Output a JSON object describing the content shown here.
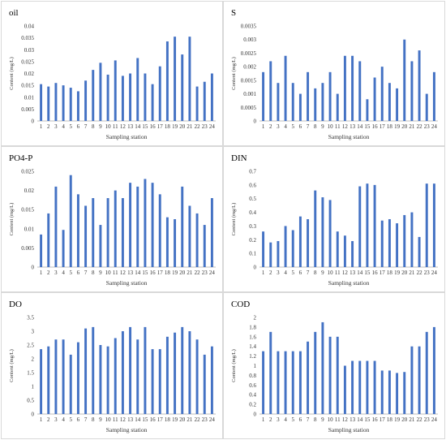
{
  "chart_data": [
    {
      "type": "bar",
      "title": "oil",
      "xlabel": "Sampling station",
      "ylabel": "Content (mg/L)",
      "ylim": [
        0,
        0.04
      ],
      "yticks": [
        "0",
        "0.005",
        "0.01",
        "0.015",
        "0.02",
        "0.025",
        "0.03",
        "0.035",
        "0.04"
      ],
      "categories": [
        "1",
        "2",
        "3",
        "4",
        "5",
        "6",
        "7",
        "8",
        "9",
        "10",
        "11",
        "12",
        "13",
        "14",
        "15",
        "16",
        "17",
        "18",
        "19",
        "20",
        "21",
        "22",
        "23",
        "24"
      ],
      "values": [
        0.0155,
        0.0145,
        0.016,
        0.015,
        0.014,
        0.0125,
        0.017,
        0.0215,
        0.0245,
        0.0195,
        0.0255,
        0.019,
        0.02,
        0.0265,
        0.02,
        0.0155,
        0.023,
        0.0335,
        0.0355,
        0.028,
        0.0355,
        0.0145,
        0.0165,
        0.02
      ],
      "color": "#4472C4"
    },
    {
      "type": "bar",
      "title": "S",
      "xlabel": "Sampling station",
      "ylabel": "Content (mg/L)",
      "ylim": [
        0,
        0.0035
      ],
      "yticks": [
        "0",
        "0.0005",
        "0.001",
        "0.0015",
        "0.002",
        "0.0025",
        "0.003",
        "0.0035"
      ],
      "categories": [
        "1",
        "2",
        "3",
        "4",
        "5",
        "6",
        "7",
        "8",
        "9",
        "10",
        "11",
        "12",
        "13",
        "14",
        "15",
        "16",
        "17",
        "18",
        "19",
        "20",
        "21",
        "22",
        "23",
        "24"
      ],
      "values": [
        0.0018,
        0.0022,
        0.0014,
        0.0024,
        0.0014,
        0.001,
        0.0018,
        0.0012,
        0.0014,
        0.0018,
        0.001,
        0.0024,
        0.0024,
        0.0022,
        0.0008,
        0.0016,
        0.002,
        0.0014,
        0.0012,
        0.003,
        0.0022,
        0.0026,
        0.001,
        0.0018
      ],
      "color": "#4472C4"
    },
    {
      "type": "bar",
      "title": "PO4-P",
      "xlabel": "Sampling station",
      "ylabel": "Content (mg/L)",
      "ylim": [
        0,
        0.025
      ],
      "yticks": [
        "0",
        "0.005",
        "0.01",
        "0.015",
        "0.02",
        "0.025"
      ],
      "categories": [
        "1",
        "2",
        "3",
        "4",
        "5",
        "6",
        "7",
        "8",
        "9",
        "10",
        "11",
        "12",
        "13",
        "14",
        "15",
        "16",
        "17",
        "18",
        "19",
        "20",
        "21",
        "22",
        "23",
        "24"
      ],
      "values": [
        0.0085,
        0.014,
        0.021,
        0.0097,
        0.024,
        0.019,
        0.016,
        0.018,
        0.011,
        0.018,
        0.02,
        0.018,
        0.022,
        0.021,
        0.023,
        0.022,
        0.019,
        0.013,
        0.0125,
        0.021,
        0.016,
        0.014,
        0.011,
        0.018
      ],
      "color": "#4472C4"
    },
    {
      "type": "bar",
      "title": "DIN",
      "xlabel": "Sampling station",
      "ylabel": "Content (mg/L)",
      "ylim": [
        0,
        0.7
      ],
      "yticks": [
        "0",
        "0.1",
        "0.2",
        "0.3",
        "0.4",
        "0.5",
        "0.6",
        "0.7"
      ],
      "categories": [
        "1",
        "2",
        "3",
        "4",
        "5",
        "6",
        "7",
        "8",
        "9",
        "10",
        "11",
        "12",
        "13",
        "14",
        "15",
        "16",
        "17",
        "18",
        "19",
        "20",
        "21",
        "22",
        "23",
        "24"
      ],
      "values": [
        0.26,
        0.18,
        0.19,
        0.3,
        0.27,
        0.37,
        0.35,
        0.56,
        0.51,
        0.49,
        0.26,
        0.23,
        0.19,
        0.59,
        0.61,
        0.6,
        0.34,
        0.35,
        0.32,
        0.38,
        0.4,
        0.22,
        0.61,
        0.61
      ],
      "color": "#4472C4"
    },
    {
      "type": "bar",
      "title": "DO",
      "xlabel": "Sampling station",
      "ylabel": "Content (mg/L)",
      "ylim": [
        0,
        3.5
      ],
      "yticks": [
        "0",
        "0.5",
        "1",
        "1.5",
        "2",
        "2.5",
        "3",
        "3.5"
      ],
      "categories": [
        "1",
        "2",
        "3",
        "4",
        "5",
        "6",
        "7",
        "8",
        "9",
        "10",
        "11",
        "12",
        "13",
        "14",
        "15",
        "16",
        "17",
        "18",
        "19",
        "20",
        "21",
        "22",
        "23",
        "24"
      ],
      "values": [
        2.35,
        2.45,
        2.7,
        2.7,
        2.15,
        2.6,
        3.1,
        3.15,
        2.5,
        2.45,
        2.75,
        3.0,
        3.15,
        2.7,
        3.15,
        2.35,
        2.35,
        2.8,
        2.95,
        3.15,
        3.0,
        2.7,
        2.15,
        2.45
      ],
      "color": "#4472C4"
    },
    {
      "type": "bar",
      "title": "COD",
      "xlabel": "Sampling station",
      "ylabel": "Content (mg/L)",
      "ylim": [
        0,
        2
      ],
      "yticks": [
        "0",
        "0.2",
        "0.4",
        "0.6",
        "0.8",
        "1",
        "1.2",
        "1.4",
        "1.6",
        "1.8",
        "2"
      ],
      "categories": [
        "1",
        "2",
        "3",
        "4",
        "5",
        "6",
        "7",
        "8",
        "9",
        "10",
        "11",
        "12",
        "13",
        "14",
        "15",
        "16",
        "17",
        "18",
        "19",
        "20",
        "21",
        "22",
        "23",
        "24"
      ],
      "values": [
        1.3,
        1.7,
        1.3,
        1.3,
        1.3,
        1.3,
        1.5,
        1.7,
        1.9,
        1.6,
        1.6,
        1.0,
        1.1,
        1.1,
        1.1,
        1.1,
        0.9,
        0.9,
        0.85,
        0.87,
        1.4,
        1.4,
        1.7,
        1.8
      ],
      "color": "#4472C4"
    }
  ]
}
